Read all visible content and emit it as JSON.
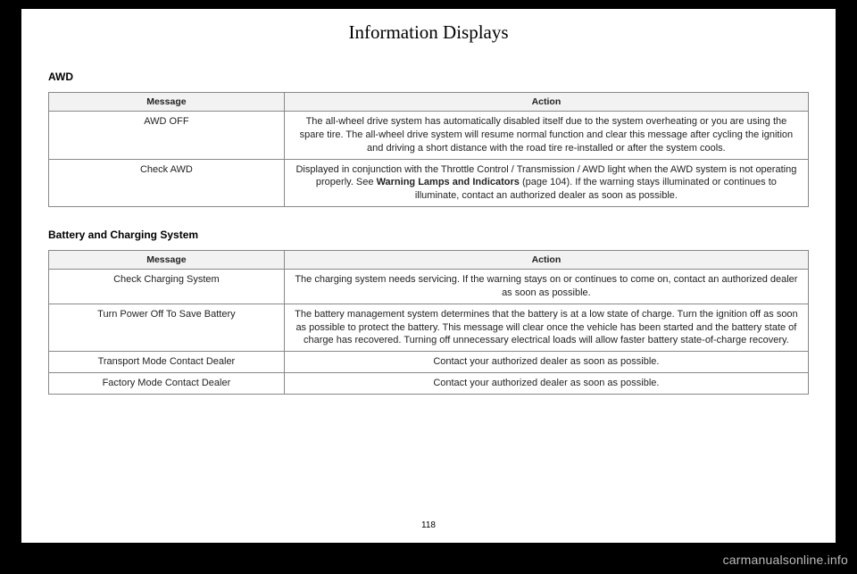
{
  "chapter_title": "Information Displays",
  "page_number": "118",
  "watermark": "carmanualsonline.info",
  "sections": [
    {
      "heading": "AWD",
      "columns": [
        "Message",
        "Action"
      ],
      "rows": [
        {
          "message": "AWD OFF",
          "action": "The all-wheel drive system has automatically disabled itself due to the system overheating or you are using the spare tire. The all-wheel drive system will resume normal function and clear this message after cycling the ignition and driving a short distance with the road tire re-installed or after the system cools."
        },
        {
          "message": "Check AWD",
          "action_parts": [
            "Displayed in conjunction with the Throttle Control / Transmission / AWD light when the AWD system is not operating properly.  See ",
            "Warning Lamps and Indicators",
            " (page 104). If the warning stays illuminated or continues to illuminate, contact an authorized dealer as soon as possible."
          ]
        }
      ]
    },
    {
      "heading": "Battery and Charging System",
      "columns": [
        "Message",
        "Action"
      ],
      "rows": [
        {
          "message": "Check Charging System",
          "action": "The charging system needs servicing. If the warning stays on or continues to come on, contact an authorized dealer as soon as possible."
        },
        {
          "message": "Turn Power Off To Save Battery",
          "action": "The battery management system determines that the battery is at a low state of charge. Turn the ignition off as soon as possible to protect the battery. This message will clear once the vehicle has been started and the battery state of charge has recovered. Turning off unnecessary electrical loads will allow faster battery state-of-charge recovery."
        },
        {
          "message": "Transport Mode Contact Dealer",
          "action": "Contact your authorized dealer as soon as possible."
        },
        {
          "message": "Factory Mode Contact Dealer",
          "action": "Contact your authorized dealer as soon as possible."
        }
      ]
    }
  ]
}
